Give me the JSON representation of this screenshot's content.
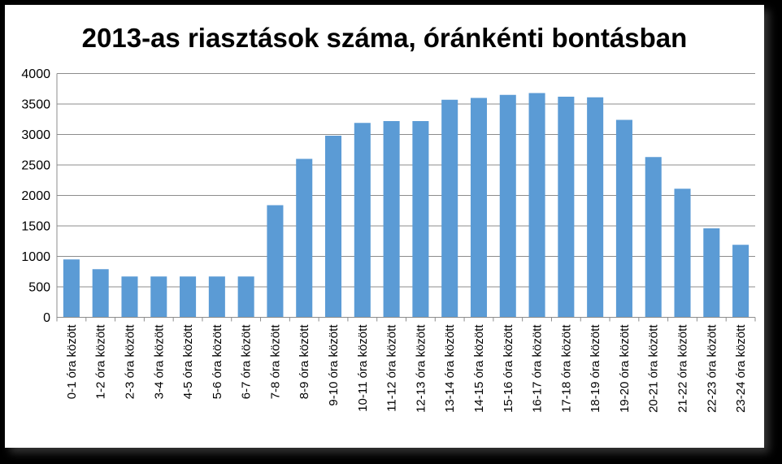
{
  "chart_data": {
    "type": "bar",
    "title": "2013-as riasztások száma, óránkénti bontásban",
    "xlabel": "",
    "ylabel": "",
    "ylim": [
      0,
      4000
    ],
    "ytick_step": 500,
    "grid": true,
    "legend": "none",
    "bar_color": "#5b9bd5",
    "grid_color": "#8c8c8c",
    "categories": [
      "0-1 óra között",
      "1-2 óra között",
      "2-3 óra között",
      "3-4 óra között",
      "4-5 óra között",
      "5-6 óra között",
      "6-7 óra között",
      "7-8 óra között",
      "8-9 óra között",
      "9-10 óra között",
      "10-11 óra között",
      "11-12 óra között",
      "12-13 óra között",
      "13-14 óra között",
      "14-15 óra között",
      "15-16 óra között",
      "16-17 óra között",
      "17-18 óra között",
      "18-19 óra között",
      "19-20 óra között",
      "20-21 óra között",
      "21-22 óra között",
      "22-23 óra között",
      "23-24 óra között"
    ],
    "values": [
      950,
      790,
      670,
      670,
      670,
      670,
      670,
      1840,
      2600,
      2980,
      3190,
      3220,
      3220,
      3570,
      3600,
      3650,
      3680,
      3620,
      3610,
      3240,
      2630,
      2110,
      1460,
      1190
    ]
  }
}
